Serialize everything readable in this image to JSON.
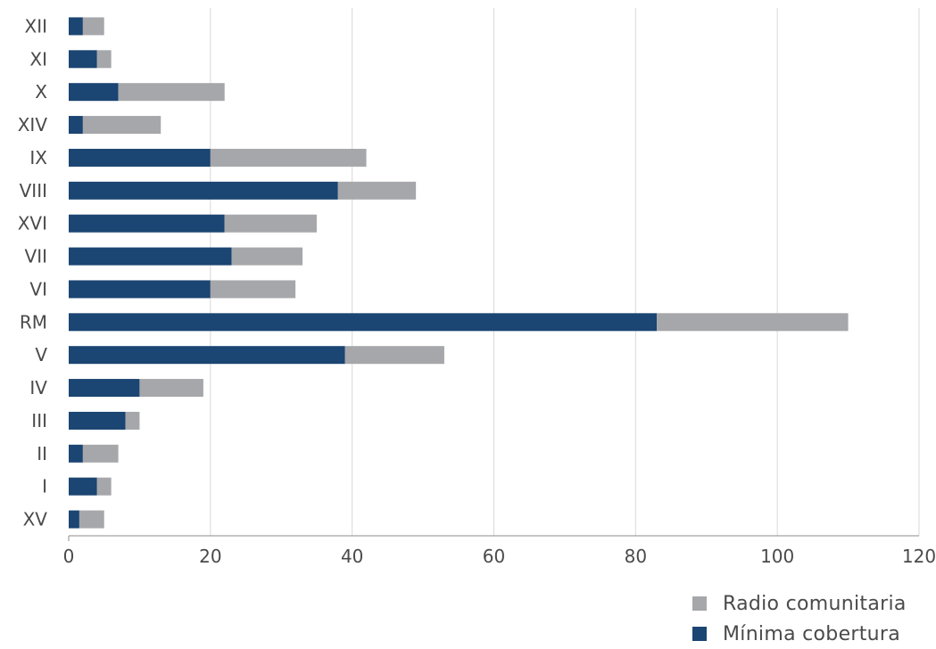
{
  "chart_data": {
    "type": "bar",
    "orientation": "horizontal",
    "stacked": true,
    "categories": [
      "XII",
      "XI",
      "X",
      "XIV",
      "IX",
      "VIII",
      "XVI",
      "VII",
      "VI",
      "RM",
      "V",
      "IV",
      "III",
      "II",
      "I",
      "XV"
    ],
    "series": [
      {
        "name": "Mínima cobertura",
        "color": "#1b4572",
        "values": [
          2,
          4,
          7,
          2,
          20,
          38,
          22,
          23,
          20,
          83,
          39,
          10,
          8,
          2,
          4,
          1.5
        ]
      },
      {
        "name": "Radio comunitaria",
        "color": "#a6a7aa",
        "values": [
          3,
          2,
          15,
          11,
          22,
          11,
          13,
          10,
          12,
          27,
          14,
          9,
          2,
          5,
          2,
          3.5
        ]
      }
    ],
    "xlim": [
      0,
      120
    ],
    "xticks": [
      "0",
      "20",
      "40",
      "60",
      "80",
      "100",
      "120"
    ],
    "grid": "vertical",
    "legend": {
      "position": "bottom-right",
      "entries": [
        "Radio comunitaria",
        "Mínima cobertura"
      ]
    }
  }
}
